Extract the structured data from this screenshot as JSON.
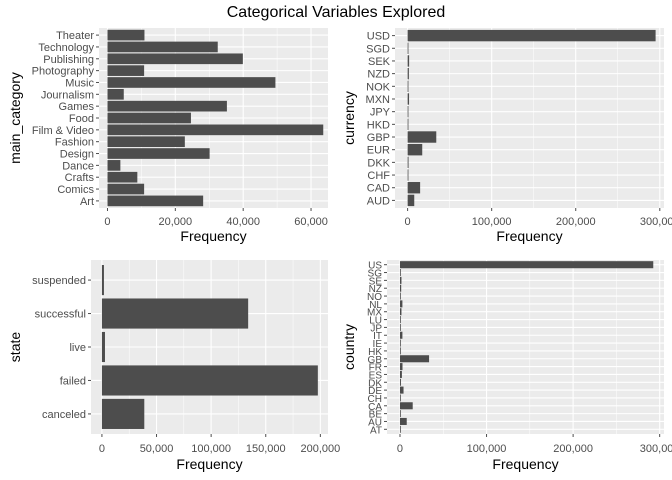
{
  "figure_title": "Categorical Variables Explored",
  "colors": {
    "panel": "#EBEBEB",
    "grid_major": "#FFFFFF",
    "bar": "#4D4D4D",
    "tick": "#4D4D4D"
  },
  "chart_data": [
    {
      "type": "bar",
      "orientation": "horizontal",
      "xlabel": "Frequency",
      "ylabel": "main_category",
      "xlim": [
        -2500,
        65000
      ],
      "xticks": [
        0,
        20000,
        40000,
        60000
      ],
      "xtick_labels": [
        "0",
        "20,000",
        "40,000",
        "60,000"
      ],
      "categories": [
        "Art",
        "Comics",
        "Crafts",
        "Dance",
        "Design",
        "Fashion",
        "Film & Video",
        "Food",
        "Games",
        "Journalism",
        "Music",
        "Photography",
        "Publishing",
        "Technology",
        "Theater"
      ],
      "values": [
        28200,
        10800,
        8800,
        3800,
        30100,
        22800,
        63600,
        24600,
        35200,
        4800,
        49500,
        10800,
        39900,
        32500,
        10900
      ],
      "grid": true
    },
    {
      "type": "bar",
      "orientation": "horizontal",
      "xlabel": "Frequency",
      "ylabel": "currency",
      "xlim": [
        -15000,
        305000
      ],
      "xticks": [
        0,
        100000,
        200000,
        300000
      ],
      "xtick_labels": [
        "0",
        "100,000",
        "200,000",
        "300,000"
      ],
      "categories": [
        "AUD",
        "CAD",
        "CHF",
        "DKK",
        "EUR",
        "GBP",
        "HKD",
        "JPY",
        "MXN",
        "NOK",
        "NZD",
        "SEK",
        "SGD",
        "USD"
      ],
      "values": [
        7900,
        14900,
        760,
        1100,
        17400,
        34100,
        600,
        40,
        1700,
        720,
        1500,
        1800,
        550,
        295000
      ],
      "grid": true
    },
    {
      "type": "bar",
      "orientation": "horizontal",
      "xlabel": "Frequency",
      "ylabel": "state",
      "xlim": [
        -10000,
        207000
      ],
      "xticks": [
        0,
        50000,
        100000,
        150000,
        200000
      ],
      "xtick_labels": [
        "0",
        "50,000",
        "100,000",
        "150,000",
        "200,000"
      ],
      "categories": [
        "canceled",
        "failed",
        "live",
        "successful",
        "suspended"
      ],
      "values": [
        38800,
        197700,
        2800,
        133900,
        1850
      ],
      "grid": true
    },
    {
      "type": "bar",
      "orientation": "horizontal",
      "xlabel": "Frequency",
      "ylabel": "country",
      "xlim": [
        -15000,
        305000
      ],
      "xticks": [
        0,
        100000,
        200000,
        300000
      ],
      "xtick_labels": [
        "0",
        "100,000",
        "200,000",
        "300,000"
      ],
      "categories": [
        "AT",
        "AU",
        "BE",
        "CA",
        "CH",
        "DE",
        "DK",
        "ES",
        "FR",
        "GB",
        "HK",
        "IE",
        "IT",
        "JP",
        "LU",
        "MX",
        "NL",
        "NO",
        "NZ",
        "SE",
        "SG",
        "US"
      ],
      "values": [
        600,
        7800,
        600,
        14700,
        760,
        4100,
        1100,
        2200,
        2900,
        33600,
        600,
        800,
        2800,
        40,
        60,
        1700,
        2800,
        700,
        1400,
        1700,
        550,
        292600
      ],
      "grid": true
    }
  ]
}
